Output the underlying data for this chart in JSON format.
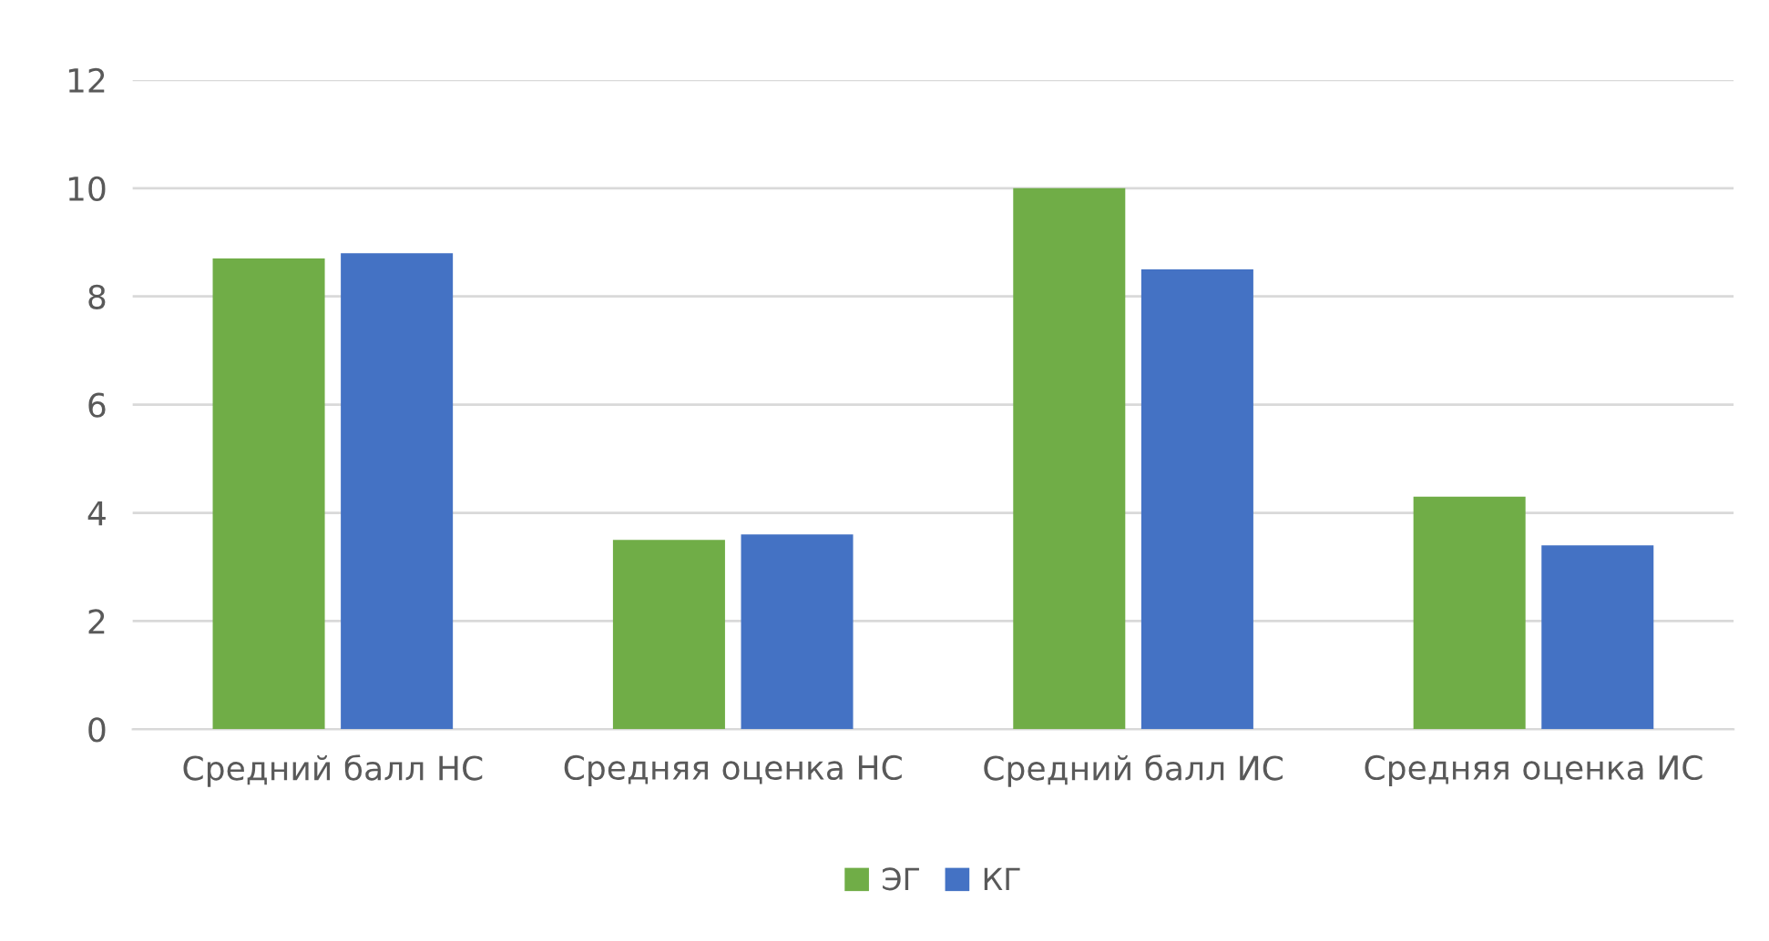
{
  "chart_data": {
    "type": "bar",
    "categories": [
      "Средний балл НС",
      "Средняя оценка НС",
      "Средний балл ИС",
      "Средняя оценка ИС"
    ],
    "series": [
      {
        "name": "ЭГ",
        "color": "#70ad47",
        "values": [
          8.7,
          3.5,
          10,
          4.3
        ]
      },
      {
        "name": "КГ",
        "color": "#4472c4",
        "values": [
          8.8,
          3.6,
          8.5,
          3.4
        ]
      }
    ],
    "ylim": [
      0,
      12
    ],
    "yticks": [
      0,
      2,
      4,
      6,
      8,
      10,
      12
    ],
    "grid": "y",
    "legend": "bottom"
  }
}
